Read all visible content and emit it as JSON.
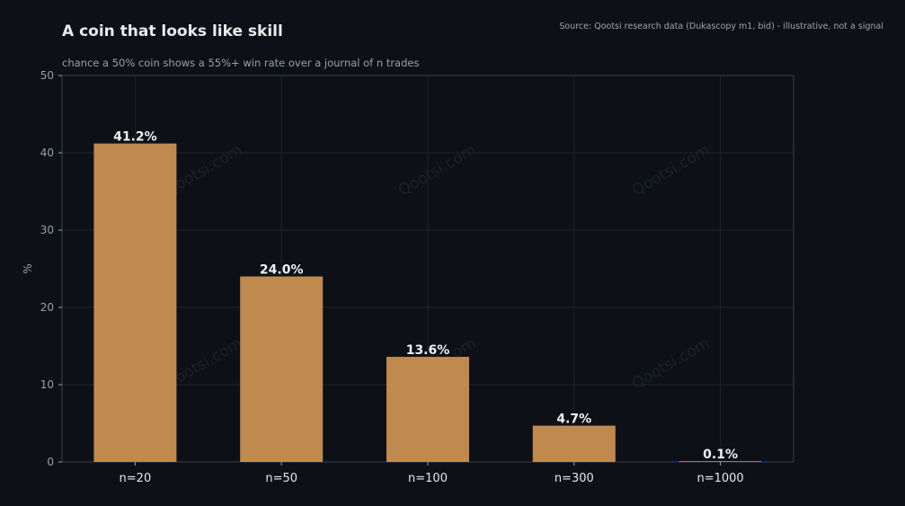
{
  "header": {
    "title": "A coin that looks like skill",
    "subtitle": "chance a 50% coin shows a 55%+ win rate over a journal of n trades",
    "source": "Source: Qootsi research data (Dukascopy m1, bid) - illustrative, not a signal"
  },
  "watermark": "Qootsi.com",
  "colors": {
    "background": "#0d1117",
    "bar": "#c08a4e",
    "grid": "#1d2229",
    "axis": "#3a3f47",
    "label": "#f0f0f0",
    "tick": "#9aa0a8"
  },
  "chart_data": {
    "type": "bar",
    "categories": [
      "n=20",
      "n=50",
      "n=100",
      "n=300",
      "n=1000"
    ],
    "values": [
      41.2,
      24.0,
      13.6,
      4.7,
      0.1
    ],
    "value_labels": [
      "41.2%",
      "24.0%",
      "13.6%",
      "4.7%",
      "0.1%"
    ],
    "title": "A coin that looks like skill",
    "subtitle": "chance a 50% coin shows a 55%+ win rate over a journal of n trades",
    "xlabel": "",
    "ylabel": "%",
    "ylim": [
      0,
      50
    ],
    "yticks": [
      0,
      10,
      20,
      30,
      40,
      50
    ],
    "grid": true
  }
}
